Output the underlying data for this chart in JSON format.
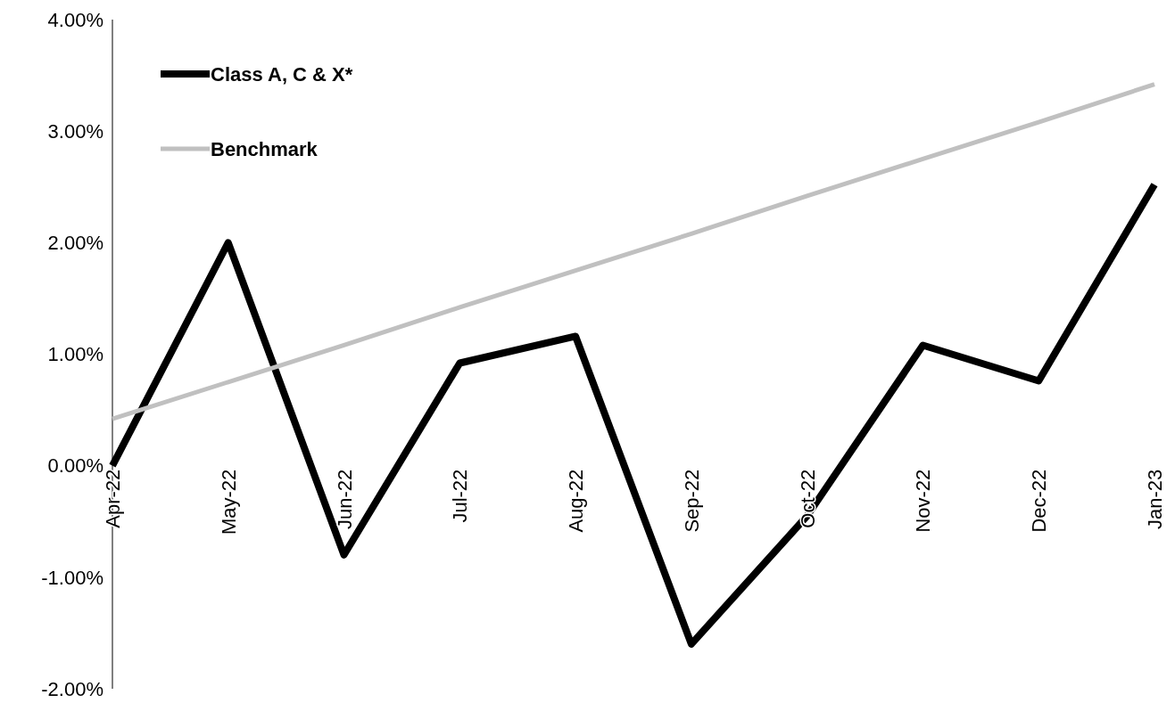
{
  "chart_data": {
    "type": "line",
    "categories": [
      "Apr-22",
      "May-22",
      "Jun-22",
      "Jul-22",
      "Aug-22",
      "Sep-22",
      "Oct-22",
      "Nov-22",
      "Dec-22",
      "Jan-23"
    ],
    "series": [
      {
        "name": "Class A, C & X*",
        "color": "#000000",
        "values": [
          0,
          2.0,
          -0.8,
          0.92,
          1.16,
          -1.6,
          -0.45,
          1.08,
          0.76,
          2.52
        ]
      },
      {
        "name": "Benchmark",
        "color": "#c0c0c0",
        "values": [
          0.42,
          0.75,
          1.08,
          1.42,
          1.75,
          2.08,
          2.42,
          2.75,
          3.08,
          3.42
        ]
      }
    ],
    "ylim": [
      -2,
      4
    ],
    "yticks": [
      {
        "value": -2,
        "label": "-2.00%"
      },
      {
        "value": -1,
        "label": "-1.00%"
      },
      {
        "value": 0,
        "label": "0.00%"
      },
      {
        "value": 1,
        "label": "1.00%"
      },
      {
        "value": 2,
        "label": "2.00%"
      },
      {
        "value": 3,
        "label": "3.00%"
      },
      {
        "value": 4,
        "label": "4.00%"
      }
    ],
    "grid": false,
    "legend": "top left",
    "marker": "none",
    "line_style": "solid"
  }
}
